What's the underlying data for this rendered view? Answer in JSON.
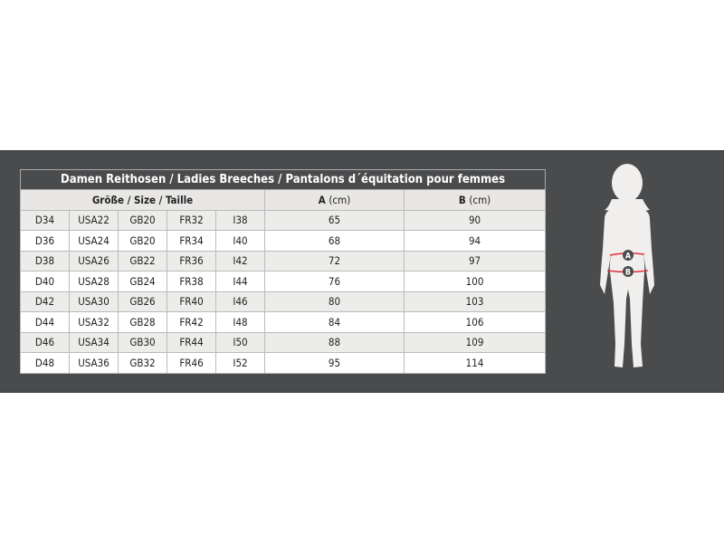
{
  "title": "Damen Reithosen / Ladies Breeches / Pantalons d´équitation pour femmes",
  "headers": {
    "size": "Größe / Size / Taille",
    "a": "A",
    "a_unit": "(cm)",
    "b": "B",
    "b_unit": "(cm)"
  },
  "rows": [
    [
      "D34",
      "USA22",
      "GB20",
      "FR32",
      "I38",
      "65",
      "90"
    ],
    [
      "D36",
      "USA24",
      "GB20",
      "FR34",
      "I40",
      "68",
      "94"
    ],
    [
      "D38",
      "USA26",
      "GB22",
      "FR36",
      "I42",
      "72",
      "97"
    ],
    [
      "D40",
      "USA28",
      "GB24",
      "FR38",
      "I44",
      "76",
      "100"
    ],
    [
      "D42",
      "USA30",
      "GB26",
      "FR40",
      "I46",
      "80",
      "103"
    ],
    [
      "D44",
      "USA32",
      "GB28",
      "FR42",
      "I48",
      "84",
      "106"
    ],
    [
      "D46",
      "USA34",
      "GB30",
      "FR44",
      "I50",
      "88",
      "109"
    ],
    [
      "D48",
      "USA36",
      "GB32",
      "FR46",
      "I52",
      "95",
      "114"
    ]
  ],
  "figure": {
    "marker_a": "A",
    "marker_b": "B",
    "line_color": "#e0303a"
  }
}
